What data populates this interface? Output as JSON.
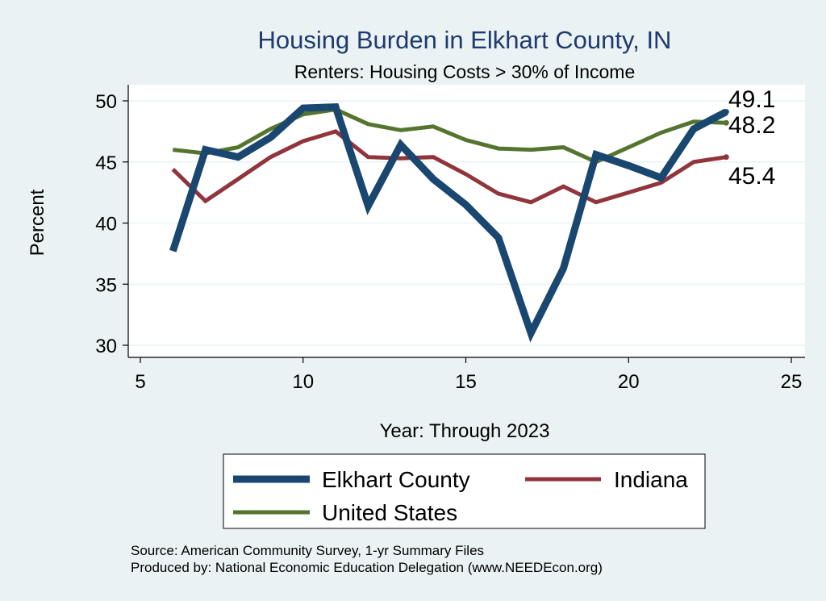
{
  "chart_data": {
    "type": "line",
    "title": "Housing Burden in Elkhart County, IN",
    "subtitle": "Renters: Housing Costs > 30% of Income",
    "xlabel": "Year: Through 2023",
    "ylabel": "Percent",
    "xlim": [
      5,
      25
    ],
    "ylim": [
      29,
      51
    ],
    "xticks": [
      5,
      10,
      15,
      20,
      25
    ],
    "yticks": [
      30,
      35,
      40,
      45,
      50
    ],
    "x": [
      6,
      7,
      8,
      9,
      10,
      11,
      12,
      13,
      14,
      15,
      16,
      17,
      18,
      19,
      20,
      21,
      22,
      23
    ],
    "series": [
      {
        "name": "Elkhart County",
        "color": "#1a476f",
        "values": [
          37.7,
          46.0,
          45.4,
          47.0,
          49.4,
          49.5,
          41.4,
          46.4,
          43.6,
          41.5,
          38.8,
          31.0,
          36.3,
          45.6,
          44.7,
          43.7,
          47.7,
          49.1
        ],
        "end_label": "49.1"
      },
      {
        "name": "Indiana",
        "color": "#90353b",
        "values": [
          44.4,
          41.8,
          43.6,
          45.4,
          46.7,
          47.5,
          45.4,
          45.3,
          45.4,
          44.0,
          42.4,
          41.7,
          43.0,
          41.7,
          42.5,
          43.3,
          45.0,
          45.4
        ],
        "end_label": "45.4"
      },
      {
        "name": "United States",
        "color": "#55752f",
        "values": [
          46.0,
          45.7,
          46.2,
          47.7,
          48.9,
          49.3,
          48.1,
          47.6,
          47.9,
          46.8,
          46.1,
          46.0,
          46.2,
          45.0,
          46.2,
          47.4,
          48.3,
          48.2
        ],
        "end_label": "48.2"
      }
    ],
    "legend": [
      "Elkhart County",
      "Indiana",
      "United States"
    ],
    "legend_position": "bottom",
    "grid": true,
    "source_line_1": "Source: American Community Survey, 1-yr Summary Files",
    "source_line_2": "Produced by: National Economic Education Delegation (www.NEEDEcon.org)"
  }
}
